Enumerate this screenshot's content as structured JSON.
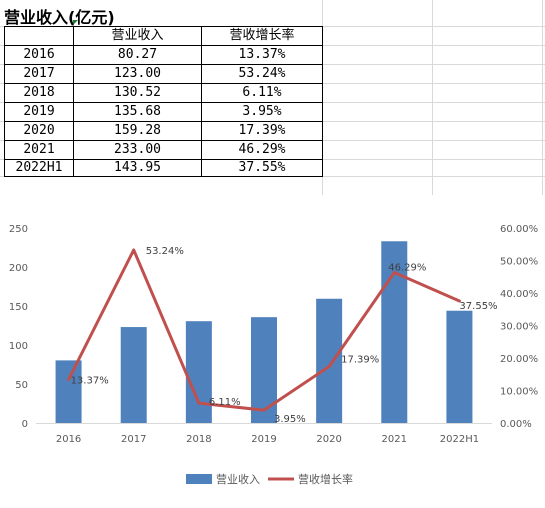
{
  "sheet": {
    "title": "营业收入(亿元)",
    "headers": [
      "",
      "营业收入",
      "营收增长率"
    ],
    "rows": [
      [
        "2016",
        "80.27",
        "13.37%"
      ],
      [
        "2017",
        "123.00",
        "53.24%"
      ],
      [
        "2018",
        "130.52",
        "6.11%"
      ],
      [
        "2019",
        "135.68",
        "3.95%"
      ],
      [
        "2020",
        "159.28",
        "17.39%"
      ],
      [
        "2021",
        "233.00",
        "46.29%"
      ],
      [
        "2022H1",
        "143.95",
        "37.55%"
      ]
    ]
  },
  "chart_data": {
    "type": "bar",
    "categories": [
      "2016",
      "2017",
      "2018",
      "2019",
      "2020",
      "2021",
      "2022H1"
    ],
    "series": [
      {
        "name": "营业收入",
        "type": "bar",
        "axis": "left",
        "color": "#4f81bd",
        "values": [
          80.27,
          123.0,
          130.52,
          135.68,
          159.28,
          233.0,
          143.95
        ]
      },
      {
        "name": "营收增长率",
        "type": "line",
        "axis": "right",
        "color": "#c0504d",
        "values": [
          13.37,
          53.24,
          6.11,
          3.95,
          17.39,
          46.29,
          37.55
        ],
        "labels": [
          "13.37%",
          "53.24%",
          "6.11%",
          "3.95%",
          "17.39%",
          "46.29%",
          "37.55%"
        ]
      }
    ],
    "ylim_left": [
      0,
      250
    ],
    "yticks_left": [
      "0",
      "50",
      "100",
      "150",
      "200",
      "250"
    ],
    "ylim_right": [
      0,
      60
    ],
    "yticks_right": [
      "0.00%",
      "10.00%",
      "20.00%",
      "30.00%",
      "40.00%",
      "50.00%",
      "60.00%"
    ],
    "legend_position": "bottom",
    "grid": false
  }
}
